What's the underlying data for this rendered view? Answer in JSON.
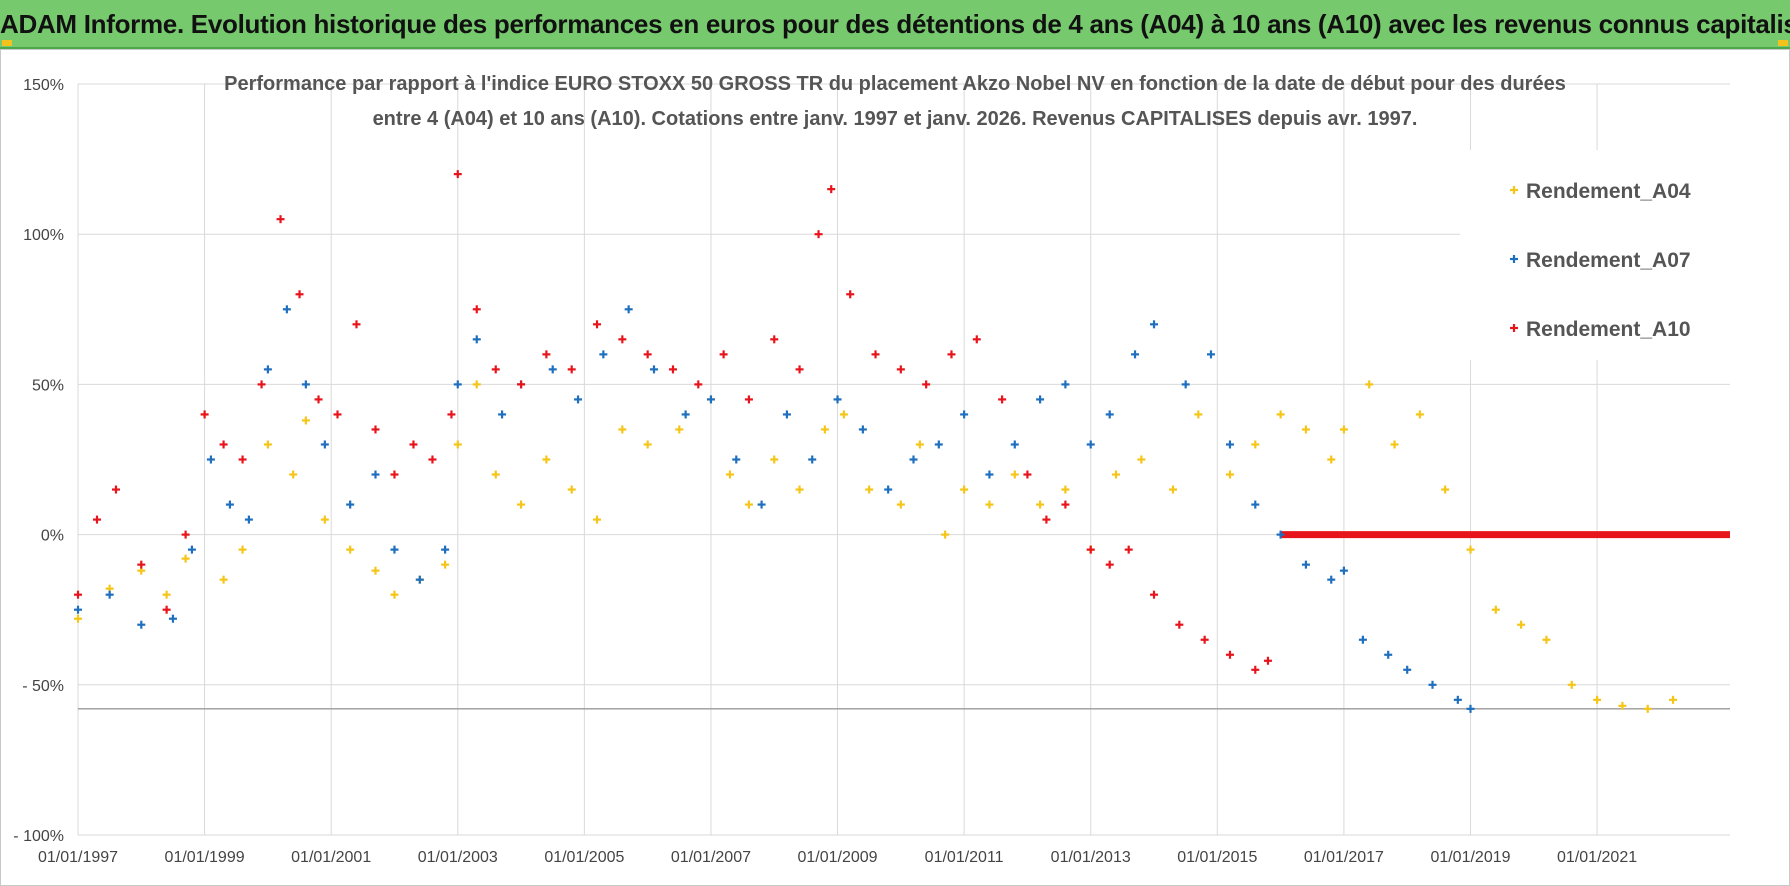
{
  "header": {
    "title": "ADAM Informe. Evolution historique des performances en euros pour des détentions de 4 ans (A04) à 10 ans (A10) avec les revenus connus capitalisés",
    "background": "#77c96e"
  },
  "chart_data": {
    "type": "scatter",
    "title_line1": "Performance par rapport à l'indice EURO STOXX 50 GROSS TR  du placement Akzo Nobel NV en fonction de la date de début pour des durées",
    "title_line2": "entre 4 (A04) et 10 ans (A10).  Cotations entre janv. 1997 et janv. 2026. Revenus CAPITALISES depuis avr. 1997.",
    "xlabel": "",
    "ylabel": "",
    "xlim": [
      1997.0,
      2023.1
    ],
    "ylim": [
      -100,
      150
    ],
    "x_ticks": [
      {
        "value": 1997,
        "label": "01/01/1997"
      },
      {
        "value": 1999,
        "label": "01/01/1999"
      },
      {
        "value": 2001,
        "label": "01/01/2001"
      },
      {
        "value": 2003,
        "label": "01/01/2003"
      },
      {
        "value": 2005,
        "label": "01/01/2005"
      },
      {
        "value": 2007,
        "label": "01/01/2007"
      },
      {
        "value": 2009,
        "label": "01/01/2009"
      },
      {
        "value": 2011,
        "label": "01/01/2011"
      },
      {
        "value": 2013,
        "label": "01/01/2013"
      },
      {
        "value": 2015,
        "label": "01/01/2015"
      },
      {
        "value": 2017,
        "label": "01/01/2017"
      },
      {
        "value": 2019,
        "label": "01/01/2019"
      },
      {
        "value": 2021,
        "label": "01/01/2021"
      }
    ],
    "y_ticks": [
      {
        "value": 150,
        "label": "150%"
      },
      {
        "value": 100,
        "label": "100%"
      },
      {
        "value": 50,
        "label": "50%"
      },
      {
        "value": 0,
        "label": "0%"
      },
      {
        "value": -50,
        "label": "- 50%"
      },
      {
        "value": -100,
        "label": "- 100%"
      }
    ],
    "grid": true,
    "legend_position": "top-right",
    "series": [
      {
        "name": "Rendement_A04",
        "color": "#f5c518",
        "x": [
          1997.0,
          1997.5,
          1998.0,
          1998.4,
          1998.7,
          1999.0,
          1999.3,
          1999.6,
          2000.0,
          2000.4,
          2000.6,
          2000.9,
          2001.3,
          2001.7,
          2002.0,
          2002.4,
          2002.8,
          2003.0,
          2003.3,
          2003.6,
          2004.0,
          2004.4,
          2004.8,
          2005.2,
          2005.6,
          2006.0,
          2006.5,
          2007.0,
          2007.3,
          2007.6,
          2008.0,
          2008.4,
          2008.8,
          2009.1,
          2009.5,
          2010.0,
          2010.3,
          2010.7,
          2011.0,
          2011.4,
          2011.8,
          2012.2,
          2012.6,
          2013.0,
          2013.4,
          2013.8,
          2014.3,
          2014.7,
          2015.2,
          2015.6,
          2016.0,
          2016.4,
          2016.8,
          2017.0,
          2017.4,
          2017.8,
          2018.2,
          2018.6,
          2019.0,
          2019.4,
          2019.8,
          2020.2,
          2020.6,
          2021.0,
          2021.4,
          2021.8,
          2022.2
        ],
        "y": [
          -28,
          -18,
          -12,
          -20,
          -8,
          40,
          -15,
          -5,
          30,
          20,
          38,
          5,
          -5,
          -12,
          -20,
          -15,
          -10,
          30,
          50,
          20,
          10,
          25,
          15,
          5,
          35,
          30,
          35,
          45,
          20,
          10,
          25,
          15,
          35,
          40,
          15,
          10,
          30,
          0,
          15,
          10,
          20,
          10,
          15,
          -5,
          20,
          25,
          15,
          40,
          20,
          30,
          40,
          35,
          25,
          35,
          50,
          30,
          40,
          15,
          -5,
          -25,
          -30,
          -35,
          -50,
          -55,
          -57,
          -58,
          -55
        ]
      },
      {
        "name": "Rendement_A07",
        "color": "#1f6fbf",
        "x": [
          1997.0,
          1997.5,
          1998.0,
          1998.5,
          1998.8,
          1999.1,
          1999.4,
          1999.7,
          2000.0,
          2000.3,
          2000.6,
          2000.9,
          2001.3,
          2001.7,
          2002.0,
          2002.4,
          2002.8,
          2003.0,
          2003.3,
          2003.7,
          2004.0,
          2004.5,
          2004.9,
          2005.3,
          2005.7,
          2006.1,
          2006.6,
          2007.0,
          2007.4,
          2007.8,
          2008.2,
          2008.6,
          2009.0,
          2009.4,
          2009.8,
          2010.2,
          2010.6,
          2011.0,
          2011.4,
          2011.8,
          2012.2,
          2012.6,
          2013.0,
          2013.3,
          2013.7,
          2014.0,
          2014.5,
          2014.9,
          2015.2,
          2015.6,
          2016.0,
          2016.4,
          2016.8,
          2017.0,
          2017.3,
          2017.7,
          2018.0,
          2018.4,
          2018.8,
          2019.0
        ],
        "y": [
          -25,
          -20,
          -30,
          -28,
          -5,
          25,
          10,
          5,
          55,
          75,
          50,
          30,
          10,
          20,
          -5,
          -15,
          -5,
          50,
          65,
          40,
          50,
          55,
          45,
          60,
          75,
          55,
          40,
          45,
          25,
          10,
          40,
          25,
          45,
          35,
          15,
          25,
          30,
          40,
          20,
          30,
          45,
          50,
          30,
          40,
          60,
          70,
          50,
          60,
          30,
          10,
          0,
          -10,
          -15,
          -12,
          -35,
          -40,
          -45,
          -50,
          -55,
          -58
        ]
      },
      {
        "name": "Rendement_A10",
        "color": "#e8141c",
        "x": [
          1997.0,
          1997.3,
          1997.6,
          1998.0,
          1998.4,
          1998.7,
          1999.0,
          1999.3,
          1999.6,
          1999.9,
          2000.2,
          2000.5,
          2000.8,
          2001.1,
          2001.4,
          2001.7,
          2002.0,
          2002.3,
          2002.6,
          2002.9,
          2003.0,
          2003.3,
          2003.6,
          2004.0,
          2004.4,
          2004.8,
          2005.2,
          2005.6,
          2006.0,
          2006.4,
          2006.8,
          2007.2,
          2007.6,
          2008.0,
          2008.4,
          2008.7,
          2008.9,
          2009.2,
          2009.6,
          2010.0,
          2010.4,
          2010.8,
          2011.2,
          2011.6,
          2012.0,
          2012.3,
          2012.6,
          2013.0,
          2013.3,
          2013.6,
          2014.0,
          2014.4,
          2014.8,
          2015.2,
          2015.6,
          2015.8
        ],
        "y": [
          -20,
          5,
          15,
          -10,
          -25,
          0,
          40,
          30,
          25,
          50,
          105,
          80,
          45,
          40,
          70,
          35,
          20,
          30,
          25,
          40,
          120,
          75,
          55,
          50,
          60,
          55,
          70,
          65,
          60,
          55,
          50,
          60,
          45,
          65,
          55,
          100,
          115,
          80,
          60,
          55,
          50,
          60,
          65,
          45,
          20,
          5,
          10,
          -5,
          -10,
          -5,
          -20,
          -30,
          -35,
          -40,
          -45,
          -42
        ]
      }
    ],
    "reference_lines": [
      {
        "name": "Rendement_A10 zero line",
        "color": "#e8141c",
        "x_start": 2016.0,
        "x_end": 2023.1,
        "value": 0
      },
      {
        "name": "lower line",
        "color": "#9a9a9a",
        "x_start": 1997.0,
        "x_end": 2023.1,
        "value": -58
      }
    ]
  }
}
